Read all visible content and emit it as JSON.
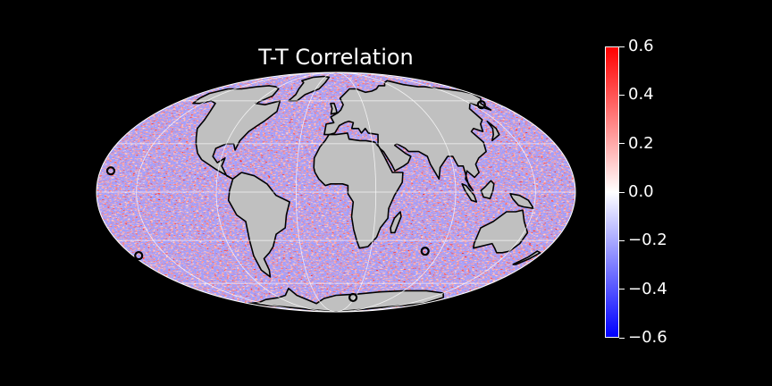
{
  "map": {
    "title": "T-T Correlation",
    "projection": "mollweide",
    "colormap": "bwr",
    "land_color": "#c0c0c0",
    "background_color": "#000000",
    "grid_color": "#ffffff",
    "markers": [
      {
        "name": "open-circle",
        "lon": -172,
        "lat": 13
      },
      {
        "name": "open-circle",
        "lon": 160,
        "lat": 57
      },
      {
        "name": "open-circle",
        "lon": 77,
        "lat": -37
      },
      {
        "name": "open-circle",
        "lon": -175,
        "lat": -40
      },
      {
        "name": "open-circle",
        "lon": 27,
        "lat": -72
      }
    ]
  },
  "colorbar": {
    "min": -0.6,
    "max": 0.6,
    "colors": {
      "low": "#0000ff",
      "mid": "#ffffff",
      "high": "#ff0000"
    },
    "ticks": [
      {
        "value": 0.6,
        "label": "0.6"
      },
      {
        "value": 0.4,
        "label": "0.4"
      },
      {
        "value": 0.2,
        "label": "0.2"
      },
      {
        "value": 0.0,
        "label": "0.0"
      },
      {
        "value": -0.2,
        "label": "−0.2"
      },
      {
        "value": -0.4,
        "label": "−0.4"
      },
      {
        "value": -0.6,
        "label": "−0.6"
      }
    ]
  }
}
